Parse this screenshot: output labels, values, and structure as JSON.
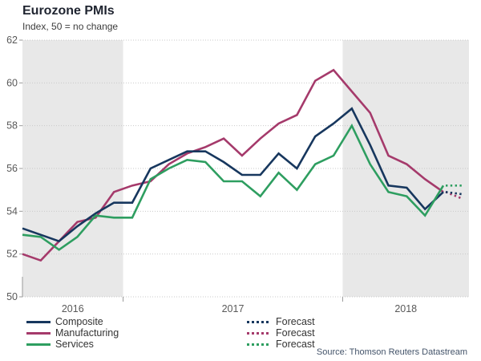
{
  "header": {
    "title": "Eurozone PMIs",
    "subtitle": "Index, 50 = no change"
  },
  "source": {
    "text": "Source: Thomson Reuters Datastream",
    "color": "#44546a"
  },
  "legend": {
    "forecast_label": "Forecast"
  },
  "colors": {
    "composite": "#17375e",
    "manufacturing": "#a53a6b",
    "services": "#2e9e60",
    "year_shading": "#e8e8e8",
    "gridline": "#c9c9c9",
    "axis_text": "#595959",
    "tick": "#9a9a9a"
  },
  "chart_data": {
    "type": "line",
    "title": "Eurozone PMIs",
    "subtitle": "Index, 50 = no change",
    "ylabel": "Index, 50 = no change",
    "ylim": [
      50,
      62
    ],
    "yticks": [
      50,
      52,
      54,
      56,
      58,
      60,
      62
    ],
    "grid": "horizontal-dotted",
    "x_year_labels": [
      "2016",
      "2017",
      "2018"
    ],
    "shaded_years": [
      "2016",
      "2018"
    ],
    "x": [
      "Jul 2016",
      "Aug 2016",
      "Sep 2016",
      "Oct 2016",
      "Nov 2016",
      "Dec 2016",
      "Jan 2017",
      "Feb 2017",
      "Mar 2017",
      "Apr 2017",
      "May 2017",
      "Jun 2017",
      "Jul 2017",
      "Aug 2017",
      "Sep 2017",
      "Oct 2017",
      "Nov 2017",
      "Dec 2017",
      "Jan 2018",
      "Feb 2018",
      "Mar 2018",
      "Apr 2018",
      "May 2018",
      "Jun 2018"
    ],
    "forecast_x": "Jul 2018",
    "series": [
      {
        "name": "Composite",
        "color": "#17375e",
        "values": [
          53.2,
          52.9,
          52.6,
          53.3,
          53.9,
          54.4,
          54.4,
          56.0,
          56.4,
          56.8,
          56.8,
          56.3,
          55.7,
          55.7,
          56.7,
          56.0,
          57.5,
          58.1,
          58.8,
          57.1,
          55.2,
          55.1,
          54.1,
          54.9
        ],
        "forecast_value": 54.8
      },
      {
        "name": "Manufacturing",
        "color": "#a53a6b",
        "values": [
          52.0,
          51.7,
          52.6,
          53.5,
          53.7,
          54.9,
          55.2,
          55.4,
          56.2,
          56.7,
          57.0,
          57.4,
          56.6,
          57.4,
          58.1,
          58.5,
          60.1,
          60.6,
          59.6,
          58.6,
          56.6,
          56.2,
          55.5,
          54.9
        ],
        "forecast_value": 54.6
      },
      {
        "name": "Services",
        "color": "#2e9e60",
        "values": [
          52.9,
          52.8,
          52.2,
          52.8,
          53.8,
          53.7,
          53.7,
          55.5,
          56.0,
          56.4,
          56.3,
          55.4,
          55.4,
          54.7,
          55.8,
          55.0,
          56.2,
          56.6,
          58.0,
          56.2,
          54.9,
          54.7,
          53.8,
          55.2
        ],
        "forecast_value": 55.2
      }
    ],
    "legend_position": "bottom"
  }
}
